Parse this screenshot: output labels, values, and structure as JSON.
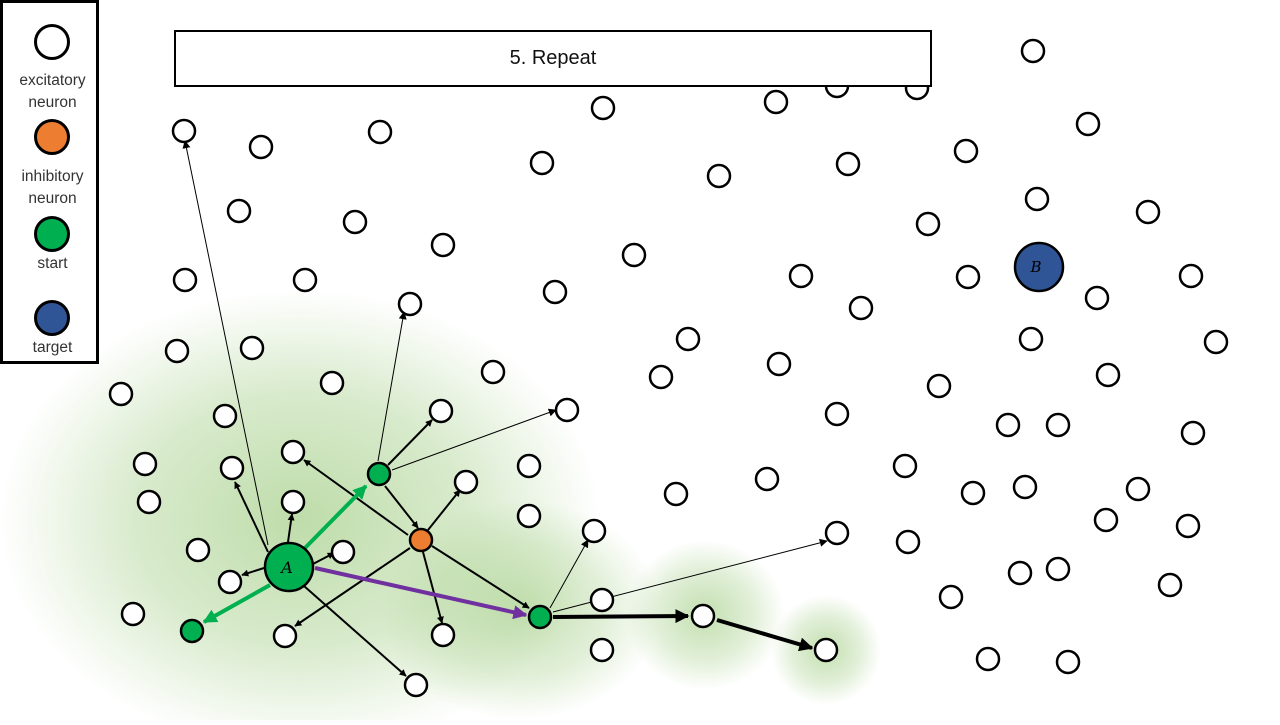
{
  "title": "5. Repeat",
  "legend": {
    "items": [
      {
        "label": "excitatory\nneuron",
        "color": "#ffffff",
        "icon": "excitatory-neuron-icon"
      },
      {
        "label": "inhibitory\nneuron",
        "color": "#ed7d31",
        "icon": "inhibitory-neuron-icon"
      },
      {
        "label": "start",
        "color": "#00b050",
        "icon": "start-neuron-icon"
      },
      {
        "label": "target",
        "color": "#2f5597",
        "icon": "target-neuron-icon"
      }
    ]
  },
  "node_labels": {
    "start": "A",
    "target": "B"
  },
  "colors": {
    "excitatory": "#ffffff",
    "inhibitory": "#ed7d31",
    "start": "#00b050",
    "target": "#2f5597",
    "path": "#7030a0",
    "active_edge": "#00b050",
    "glow": "#a9d18e"
  }
}
